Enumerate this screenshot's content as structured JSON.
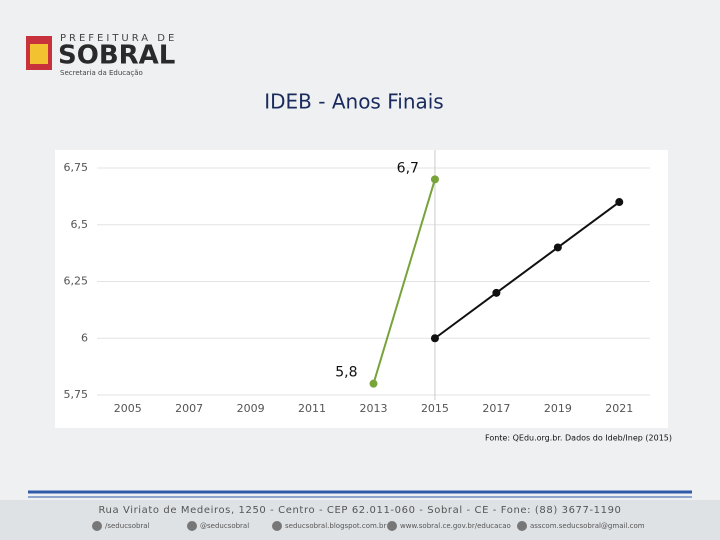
{
  "header": {
    "line1": "PREFEITURA DE",
    "line2": "SOBRAL",
    "line3": "Secretaria da Educação"
  },
  "chart_data": {
    "type": "line",
    "title": "IDEB - Anos Finais",
    "series": [
      {
        "color": "#77a33a",
        "x": [
          2013,
          2015
        ],
        "values": [
          5.8,
          6.7
        ],
        "value_labels": [
          "5,8",
          "6,7"
        ]
      },
      {
        "color": "#111111",
        "x": [
          2015,
          2017,
          2019,
          2021
        ],
        "values": [
          6.0,
          6.2,
          6.4,
          6.6
        ]
      }
    ],
    "xlim": [
      2004,
      2022
    ],
    "xticks": [
      2005,
      2007,
      2009,
      2011,
      2013,
      2015,
      2017,
      2019,
      2021
    ],
    "ylim": [
      5.75,
      6.75
    ],
    "yticks": [
      {
        "value": 5.75,
        "label": "5,75"
      },
      6,
      {
        "value": 6.25,
        "label": "6,25"
      },
      {
        "value": 6.5,
        "label": "6,5"
      },
      {
        "value": 6.75,
        "label": "6,75"
      }
    ],
    "grid": true,
    "vline": 2015
  },
  "source": "Fonte: QEdu.org.br. Dados do Ideb/Inep (2015)",
  "footer": {
    "address": "Rua Viriato de Medeiros, 1250 - Centro - CEP 62.011-060 - Sobral - CE - Fone: (88) 3677-1190",
    "links": [
      "/seducsobral",
      "@seducsobral",
      "seducsobral.blogspot.com.br",
      "www.sobral.ce.gov.br/educacao",
      "asscom.seducsobral@gmail.com"
    ]
  }
}
